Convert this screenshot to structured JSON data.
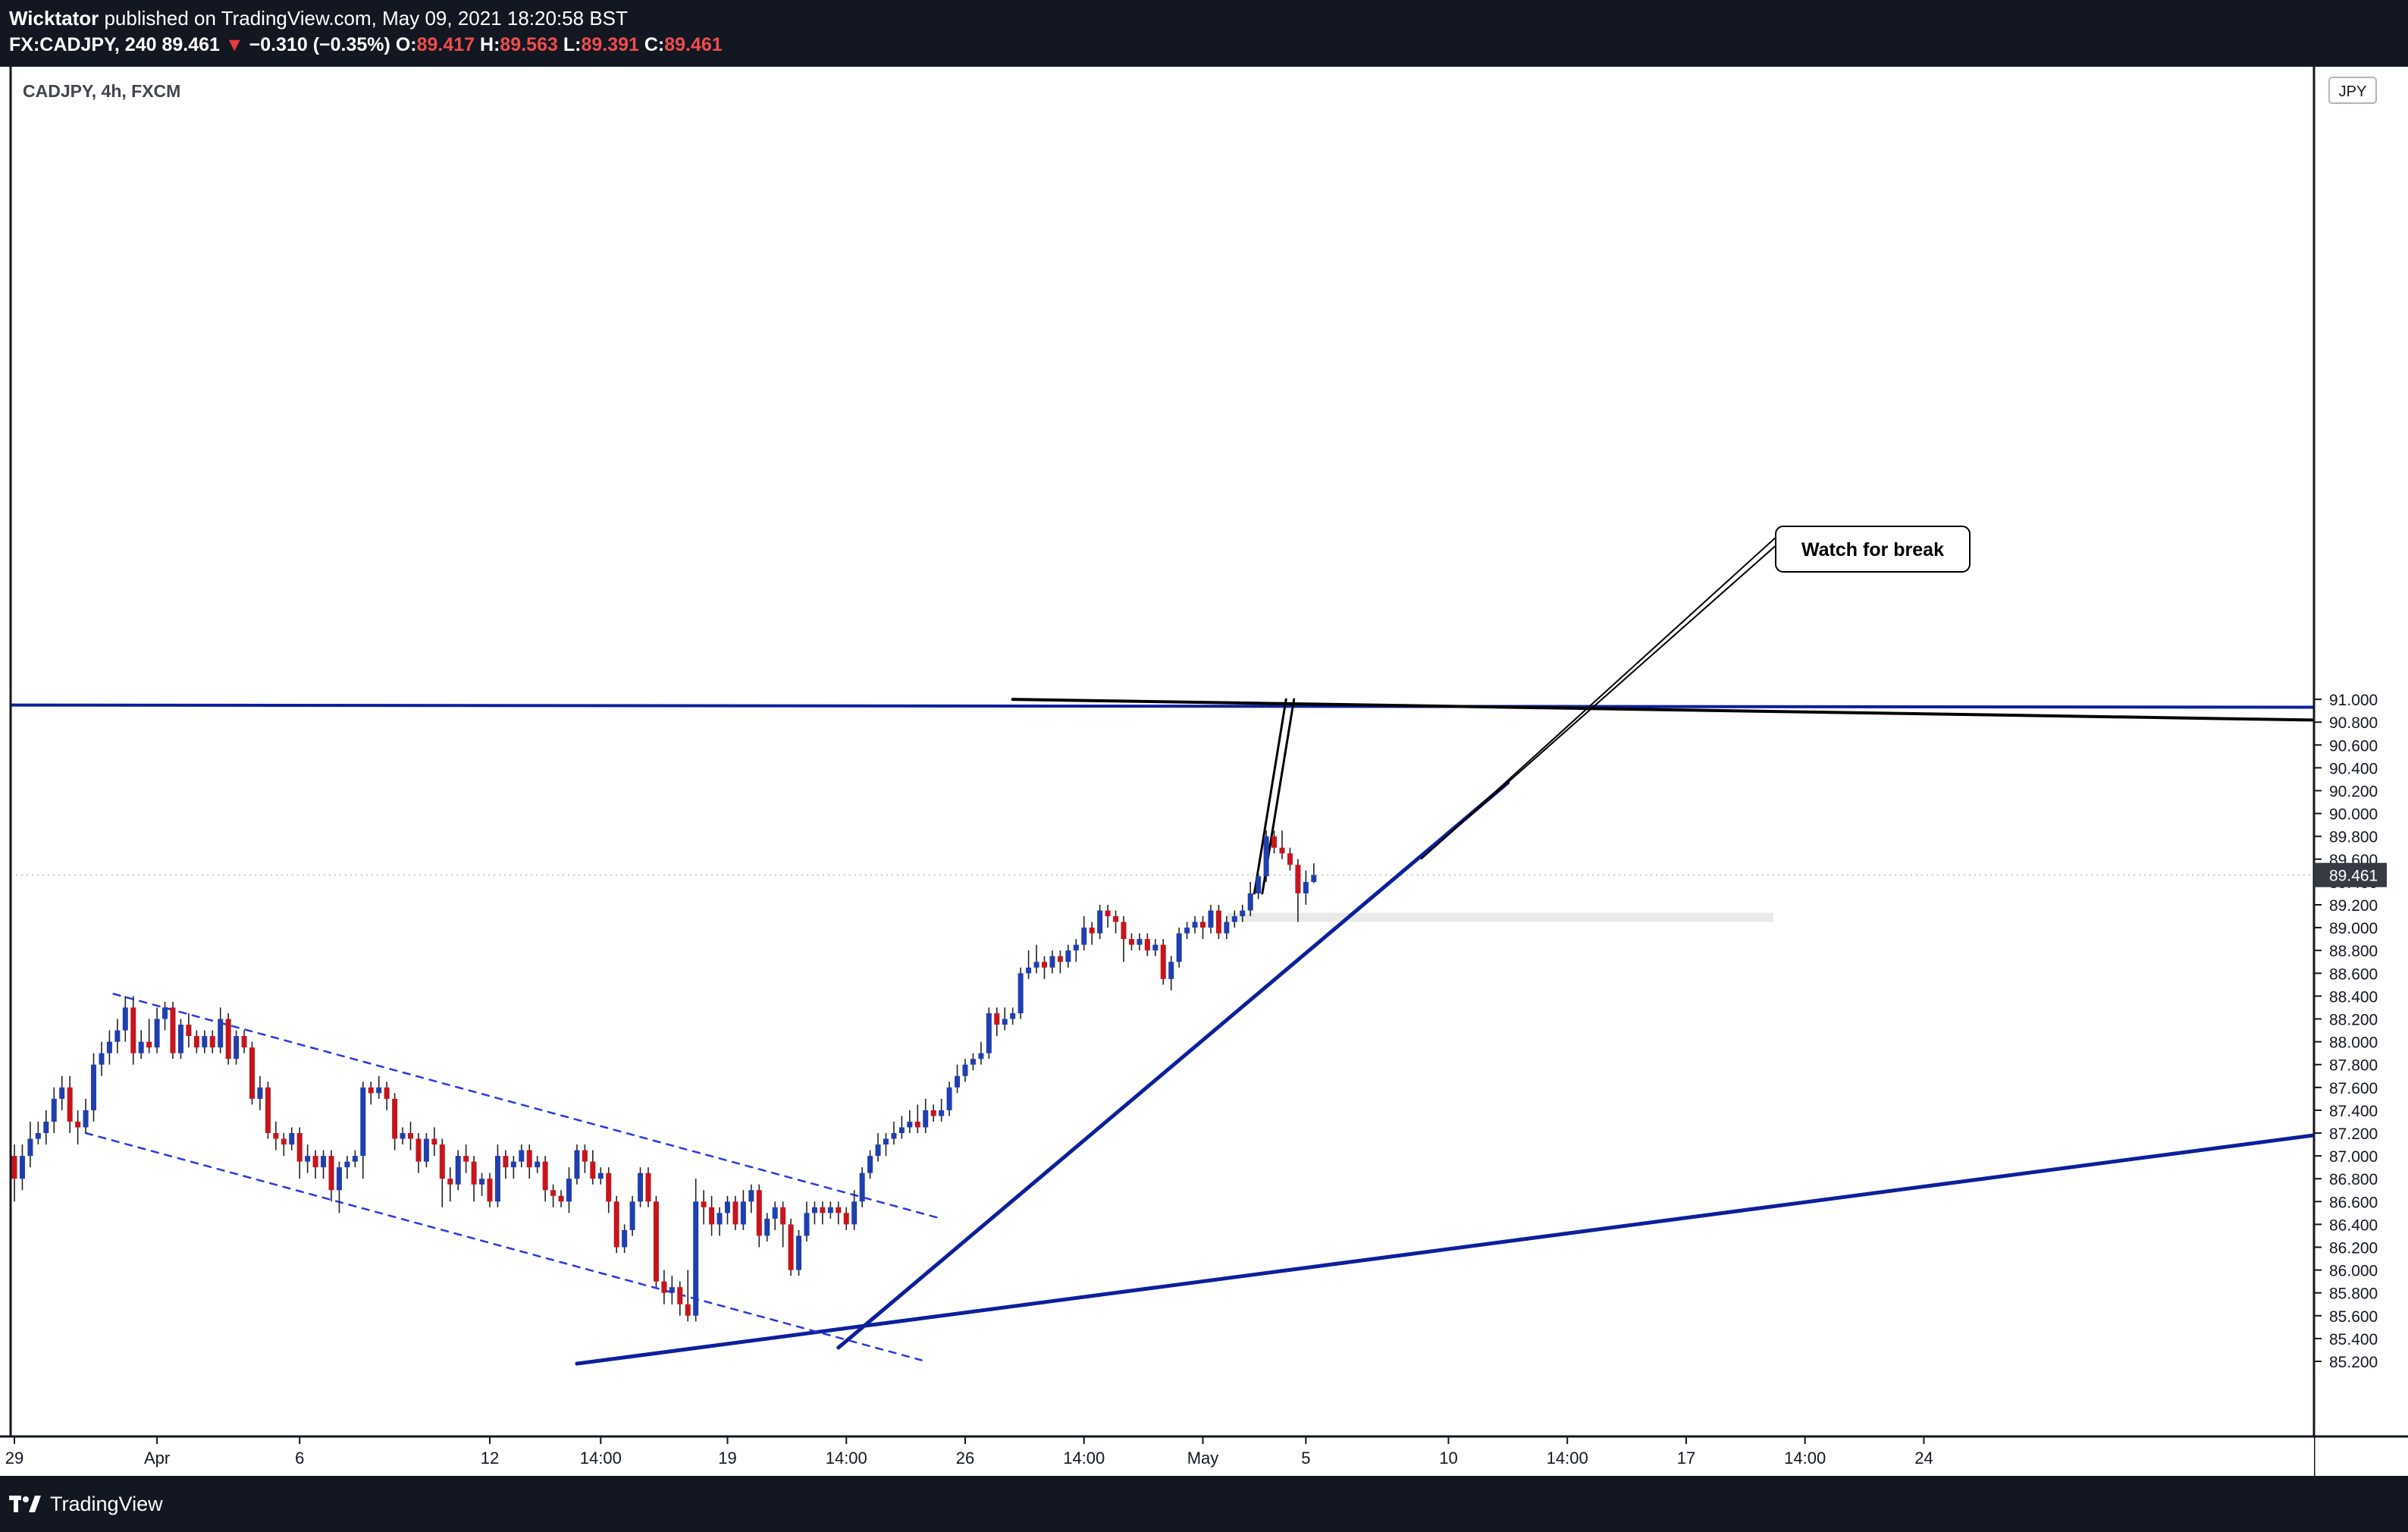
{
  "header": {
    "author": "Wicktator",
    "published_text": "published on TradingView.com, May 09, 2021 18:20:58 BST",
    "symbol": "FX:CADJPY, 240",
    "price": "89.461",
    "change_arrow": "▼",
    "change": "−0.310 (−0.35%)",
    "open_label": "O:",
    "open": "89.417",
    "high_label": "H:",
    "high": "89.563",
    "low_label": "L:",
    "low": "89.391",
    "close_label": "C:",
    "close": "89.461"
  },
  "footer": {
    "brand": "TradingView",
    "logo_icon": "tradingview-logo-icon"
  },
  "colors": {
    "up": "#1f3fb0",
    "down": "#c8141c",
    "trendline": "#0c1f9c",
    "channel": "#2a37e6",
    "annotation_line": "#000000",
    "zone": "#e9e9e9",
    "last_price_bg": "#363a45"
  },
  "chart_data": {
    "type": "candlestick",
    "title": "CADJPY, 4h, FXCM",
    "currency": "JPY",
    "ylim": [
      85.0,
      91.0
    ],
    "y_ticks": [
      "85.200",
      "85.400",
      "85.600",
      "85.800",
      "86.000",
      "86.200",
      "86.400",
      "86.600",
      "86.800",
      "87.000",
      "87.200",
      "87.400",
      "87.600",
      "87.800",
      "88.000",
      "88.200",
      "88.400",
      "88.600",
      "88.800",
      "89.000",
      "89.200",
      "89.400",
      "89.600",
      "89.800",
      "90.000",
      "90.200",
      "90.400",
      "90.600",
      "90.800",
      "91.000"
    ],
    "x_ticks": [
      {
        "label": "29",
        "t": 0
      },
      {
        "label": "Apr",
        "t": 18
      },
      {
        "label": "6",
        "t": 36
      },
      {
        "label": "12",
        "t": 60
      },
      {
        "label": "14:00",
        "t": 74
      },
      {
        "label": "19",
        "t": 90
      },
      {
        "label": "14:00",
        "t": 105
      },
      {
        "label": "26",
        "t": 120
      },
      {
        "label": "14:00",
        "t": 135
      },
      {
        "label": "May",
        "t": 150
      },
      {
        "label": "5",
        "t": 163
      },
      {
        "label": "10",
        "t": 181
      },
      {
        "label": "14:00",
        "t": 196
      },
      {
        "label": "17",
        "t": 211
      },
      {
        "label": "14:00",
        "t": 226
      },
      {
        "label": "24",
        "t": 241
      }
    ],
    "last_price": 89.461,
    "candles": [
      [
        87.0,
        86.8,
        87.1,
        86.6
      ],
      [
        86.8,
        87.0,
        87.1,
        86.7
      ],
      [
        87.0,
        87.15,
        87.3,
        86.9
      ],
      [
        87.15,
        87.2,
        87.3,
        87.1
      ],
      [
        87.2,
        87.3,
        87.4,
        87.1
      ],
      [
        87.3,
        87.5,
        87.6,
        87.2
      ],
      [
        87.5,
        87.6,
        87.7,
        87.4
      ],
      [
        87.6,
        87.3,
        87.7,
        87.2
      ],
      [
        87.3,
        87.25,
        87.4,
        87.1
      ],
      [
        87.25,
        87.4,
        87.5,
        87.2
      ],
      [
        87.4,
        87.8,
        87.9,
        87.3
      ],
      [
        87.8,
        87.9,
        88.0,
        87.7
      ],
      [
        87.9,
        88.0,
        88.1,
        87.8
      ],
      [
        88.0,
        88.1,
        88.2,
        87.9
      ],
      [
        88.1,
        88.3,
        88.4,
        88.0
      ],
      [
        88.3,
        87.9,
        88.4,
        87.8
      ],
      [
        87.9,
        88.0,
        88.1,
        87.85
      ],
      [
        88.0,
        87.95,
        88.2,
        87.9
      ],
      [
        87.95,
        88.2,
        88.3,
        87.9
      ],
      [
        88.2,
        88.3,
        88.35,
        88.1
      ],
      [
        88.3,
        87.9,
        88.35,
        87.85
      ],
      [
        87.9,
        88.15,
        88.2,
        87.85
      ],
      [
        88.15,
        88.05,
        88.25,
        87.95
      ],
      [
        88.05,
        87.95,
        88.1,
        87.9
      ],
      [
        87.95,
        88.05,
        88.1,
        87.9
      ],
      [
        88.05,
        87.95,
        88.1,
        87.9
      ],
      [
        87.95,
        88.2,
        88.3,
        87.9
      ],
      [
        88.2,
        87.85,
        88.25,
        87.8
      ],
      [
        87.85,
        88.05,
        88.1,
        87.8
      ],
      [
        88.05,
        87.95,
        88.1,
        87.9
      ],
      [
        87.95,
        87.5,
        88.0,
        87.45
      ],
      [
        87.5,
        87.6,
        87.7,
        87.4
      ],
      [
        87.6,
        87.2,
        87.65,
        87.15
      ],
      [
        87.2,
        87.15,
        87.3,
        87.05
      ],
      [
        87.15,
        87.1,
        87.2,
        87.0
      ],
      [
        87.1,
        87.2,
        87.25,
        87.05
      ],
      [
        87.2,
        86.95,
        87.25,
        86.8
      ],
      [
        86.95,
        87.0,
        87.1,
        86.85
      ],
      [
        87.0,
        86.9,
        87.05,
        86.8
      ],
      [
        86.9,
        87.0,
        87.05,
        86.8
      ],
      [
        87.0,
        86.7,
        87.05,
        86.6
      ],
      [
        86.7,
        86.9,
        86.95,
        86.5
      ],
      [
        86.9,
        86.95,
        87.0,
        86.8
      ],
      [
        86.95,
        87.0,
        87.05,
        86.9
      ],
      [
        87.0,
        87.6,
        87.65,
        86.8
      ],
      [
        87.6,
        87.55,
        87.65,
        87.45
      ],
      [
        87.55,
        87.6,
        87.7,
        87.5
      ],
      [
        87.6,
        87.5,
        87.65,
        87.4
      ],
      [
        87.5,
        87.15,
        87.55,
        87.05
      ],
      [
        87.15,
        87.2,
        87.25,
        87.1
      ],
      [
        87.2,
        87.15,
        87.3,
        87.05
      ],
      [
        87.15,
        86.95,
        87.2,
        86.85
      ],
      [
        86.95,
        87.15,
        87.2,
        86.9
      ],
      [
        87.15,
        87.1,
        87.25,
        87.0
      ],
      [
        87.1,
        86.8,
        87.15,
        86.55
      ],
      [
        86.8,
        86.75,
        86.9,
        86.6
      ],
      [
        86.75,
        87.0,
        87.05,
        86.7
      ],
      [
        87.0,
        86.95,
        87.1,
        86.85
      ],
      [
        86.95,
        86.75,
        87.0,
        86.6
      ],
      [
        86.75,
        86.8,
        86.85,
        86.65
      ],
      [
        86.8,
        86.6,
        86.85,
        86.55
      ],
      [
        86.6,
        87.0,
        87.1,
        86.55
      ],
      [
        87.0,
        86.9,
        87.05,
        86.8
      ],
      [
        86.9,
        86.95,
        87.0,
        86.8
      ],
      [
        86.95,
        87.05,
        87.1,
        86.9
      ],
      [
        87.05,
        86.9,
        87.1,
        86.8
      ],
      [
        86.9,
        86.95,
        87.0,
        86.85
      ],
      [
        86.95,
        86.7,
        87.0,
        86.6
      ],
      [
        86.7,
        86.65,
        86.75,
        86.55
      ],
      [
        86.65,
        86.6,
        86.7,
        86.55
      ],
      [
        86.6,
        86.8,
        86.9,
        86.5
      ],
      [
        86.8,
        87.05,
        87.1,
        86.75
      ],
      [
        87.05,
        86.95,
        87.1,
        86.85
      ],
      [
        86.95,
        86.8,
        87.05,
        86.75
      ],
      [
        86.8,
        86.85,
        86.9,
        86.75
      ],
      [
        86.85,
        86.6,
        86.9,
        86.5
      ],
      [
        86.6,
        86.2,
        86.65,
        86.15
      ],
      [
        86.2,
        86.35,
        86.4,
        86.15
      ],
      [
        86.35,
        86.6,
        86.65,
        86.3
      ],
      [
        86.6,
        86.85,
        86.9,
        86.55
      ],
      [
        86.85,
        86.6,
        86.9,
        86.55
      ],
      [
        86.6,
        85.9,
        86.65,
        85.85
      ],
      [
        85.9,
        85.8,
        86.0,
        85.7
      ],
      [
        85.8,
        85.85,
        85.95,
        85.7
      ],
      [
        85.85,
        85.7,
        85.9,
        85.6
      ],
      [
        85.7,
        85.6,
        86.0,
        85.55
      ],
      [
        85.6,
        86.6,
        86.8,
        85.55
      ],
      [
        86.6,
        86.55,
        86.7,
        86.4
      ],
      [
        86.55,
        86.4,
        86.65,
        86.3
      ],
      [
        86.4,
        86.5,
        86.55,
        86.3
      ],
      [
        86.5,
        86.6,
        86.65,
        86.4
      ],
      [
        86.6,
        86.4,
        86.65,
        86.35
      ],
      [
        86.4,
        86.6,
        86.7,
        86.35
      ],
      [
        86.6,
        86.7,
        86.75,
        86.5
      ],
      [
        86.7,
        86.3,
        86.75,
        86.2
      ],
      [
        86.3,
        86.45,
        86.5,
        86.25
      ],
      [
        86.45,
        86.55,
        86.6,
        86.35
      ],
      [
        86.55,
        86.4,
        86.6,
        86.2
      ],
      [
        86.4,
        86.0,
        86.45,
        85.95
      ],
      [
        86.0,
        86.3,
        86.35,
        85.95
      ],
      [
        86.3,
        86.5,
        86.6,
        86.25
      ],
      [
        86.5,
        86.55,
        86.6,
        86.4
      ],
      [
        86.55,
        86.5,
        86.6,
        86.4
      ],
      [
        86.5,
        86.55,
        86.6,
        86.45
      ],
      [
        86.55,
        86.5,
        86.6,
        86.4
      ],
      [
        86.5,
        86.4,
        86.55,
        86.35
      ],
      [
        86.4,
        86.6,
        86.7,
        86.35
      ],
      [
        86.6,
        86.85,
        86.9,
        86.55
      ],
      [
        86.85,
        87.0,
        87.05,
        86.8
      ],
      [
        87.0,
        87.1,
        87.2,
        86.95
      ],
      [
        87.1,
        87.15,
        87.2,
        87.0
      ],
      [
        87.15,
        87.2,
        87.3,
        87.1
      ],
      [
        87.2,
        87.25,
        87.35,
        87.15
      ],
      [
        87.25,
        87.3,
        87.4,
        87.2
      ],
      [
        87.3,
        87.25,
        87.45,
        87.2
      ],
      [
        87.25,
        87.4,
        87.5,
        87.2
      ],
      [
        87.4,
        87.35,
        87.45,
        87.3
      ],
      [
        87.35,
        87.4,
        87.5,
        87.3
      ],
      [
        87.4,
        87.6,
        87.65,
        87.35
      ],
      [
        87.6,
        87.7,
        87.8,
        87.55
      ],
      [
        87.7,
        87.8,
        87.85,
        87.65
      ],
      [
        87.8,
        87.85,
        87.9,
        87.75
      ],
      [
        87.85,
        87.9,
        88.0,
        87.8
      ],
      [
        87.9,
        88.25,
        88.3,
        87.85
      ],
      [
        88.25,
        88.15,
        88.3,
        88.05
      ],
      [
        88.15,
        88.2,
        88.3,
        88.1
      ],
      [
        88.2,
        88.25,
        88.3,
        88.15
      ],
      [
        88.25,
        88.6,
        88.65,
        88.2
      ],
      [
        88.6,
        88.65,
        88.8,
        88.55
      ],
      [
        88.65,
        88.7,
        88.85,
        88.6
      ],
      [
        88.7,
        88.65,
        88.75,
        88.55
      ],
      [
        88.65,
        88.75,
        88.8,
        88.6
      ],
      [
        88.75,
        88.7,
        88.8,
        88.6
      ],
      [
        88.7,
        88.8,
        88.85,
        88.65
      ],
      [
        88.8,
        88.85,
        88.9,
        88.7
      ],
      [
        88.85,
        89.0,
        89.1,
        88.8
      ],
      [
        89.0,
        88.95,
        89.05,
        88.85
      ],
      [
        88.95,
        89.15,
        89.2,
        88.9
      ],
      [
        89.15,
        89.1,
        89.2,
        89.0
      ],
      [
        89.1,
        89.05,
        89.15,
        88.95
      ],
      [
        89.05,
        88.9,
        89.1,
        88.7
      ],
      [
        88.9,
        88.85,
        88.95,
        88.8
      ],
      [
        88.85,
        88.9,
        88.95,
        88.8
      ],
      [
        88.9,
        88.8,
        88.95,
        88.75
      ],
      [
        88.8,
        88.85,
        88.9,
        88.75
      ],
      [
        88.85,
        88.55,
        88.9,
        88.5
      ],
      [
        88.55,
        88.7,
        88.75,
        88.45
      ],
      [
        88.7,
        88.95,
        89.0,
        88.65
      ],
      [
        88.95,
        89.0,
        89.05,
        88.9
      ],
      [
        89.0,
        89.05,
        89.1,
        88.95
      ],
      [
        89.05,
        89.0,
        89.1,
        88.9
      ],
      [
        89.0,
        89.15,
        89.2,
        88.95
      ],
      [
        89.15,
        88.95,
        89.2,
        88.9
      ],
      [
        88.95,
        89.05,
        89.1,
        88.9
      ],
      [
        89.05,
        89.1,
        89.15,
        89.0
      ],
      [
        89.1,
        89.15,
        89.2,
        89.05
      ],
      [
        89.15,
        89.3,
        89.4,
        89.1
      ],
      [
        89.3,
        89.45,
        89.5,
        89.25
      ],
      [
        89.45,
        89.8,
        89.85,
        89.4
      ],
      [
        89.8,
        89.7,
        89.85,
        89.65
      ],
      [
        89.7,
        89.65,
        89.85,
        89.6
      ],
      [
        89.65,
        89.55,
        89.7,
        89.5
      ],
      [
        89.55,
        89.3,
        89.6,
        89.05
      ],
      [
        89.3,
        89.4,
        89.5,
        89.2
      ],
      [
        89.4,
        89.461,
        89.563,
        89.391
      ]
    ],
    "annotations": [
      {
        "type": "callout",
        "text": "Watch for break",
        "point": [
          176,
          89.6
        ]
      },
      {
        "type": "zone",
        "from_t": 153,
        "to_t": 222,
        "y_low": 89.05,
        "y_high": 89.13
      }
    ]
  }
}
